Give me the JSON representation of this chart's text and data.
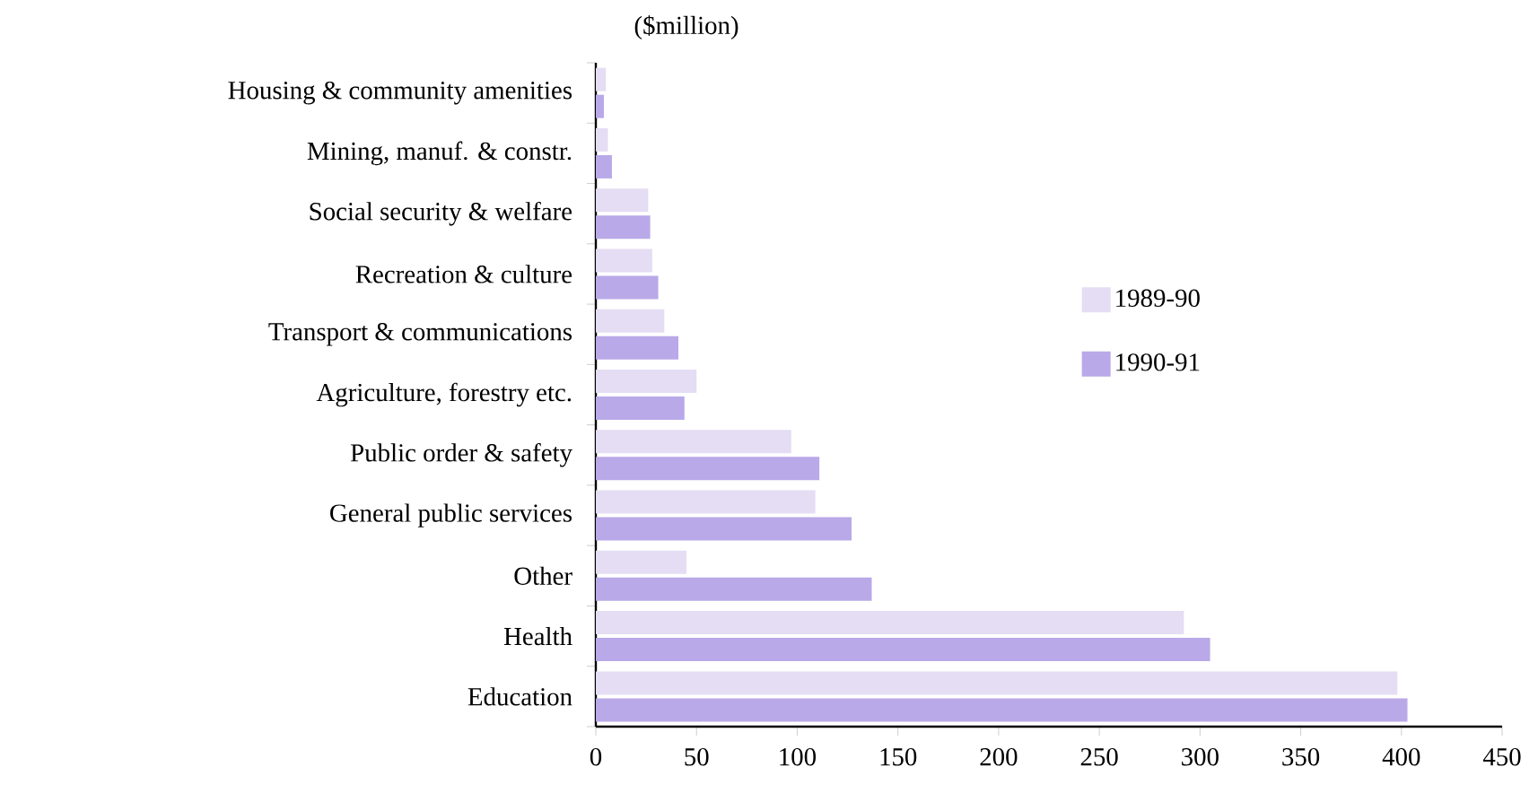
{
  "chart_data": {
    "type": "bar",
    "orientation": "horizontal",
    "title": "($million)",
    "categories": [
      "Housing & community amenities",
      "Mining, manuf. & constr.",
      "Social security & welfare",
      "Recreation & culture",
      "Transport & communications",
      "Agriculture, forestry etc.",
      "Public order & safety",
      "General public services",
      "Other",
      "Health",
      "Education"
    ],
    "series": [
      {
        "name": "1989-90",
        "color": "#e4ddf3",
        "values": [
          5,
          6,
          26,
          28,
          34,
          50,
          97,
          109,
          45,
          292,
          398
        ]
      },
      {
        "name": "1990-91",
        "color": "#b9a9e8",
        "values": [
          4,
          8,
          27,
          31,
          41,
          44,
          111,
          127,
          137,
          305,
          403
        ]
      }
    ],
    "xlim": [
      0,
      450
    ],
    "xticks": [
      0,
      50,
      100,
      150,
      200,
      250,
      300,
      350,
      400,
      450
    ],
    "legend": "right",
    "grid": false
  }
}
